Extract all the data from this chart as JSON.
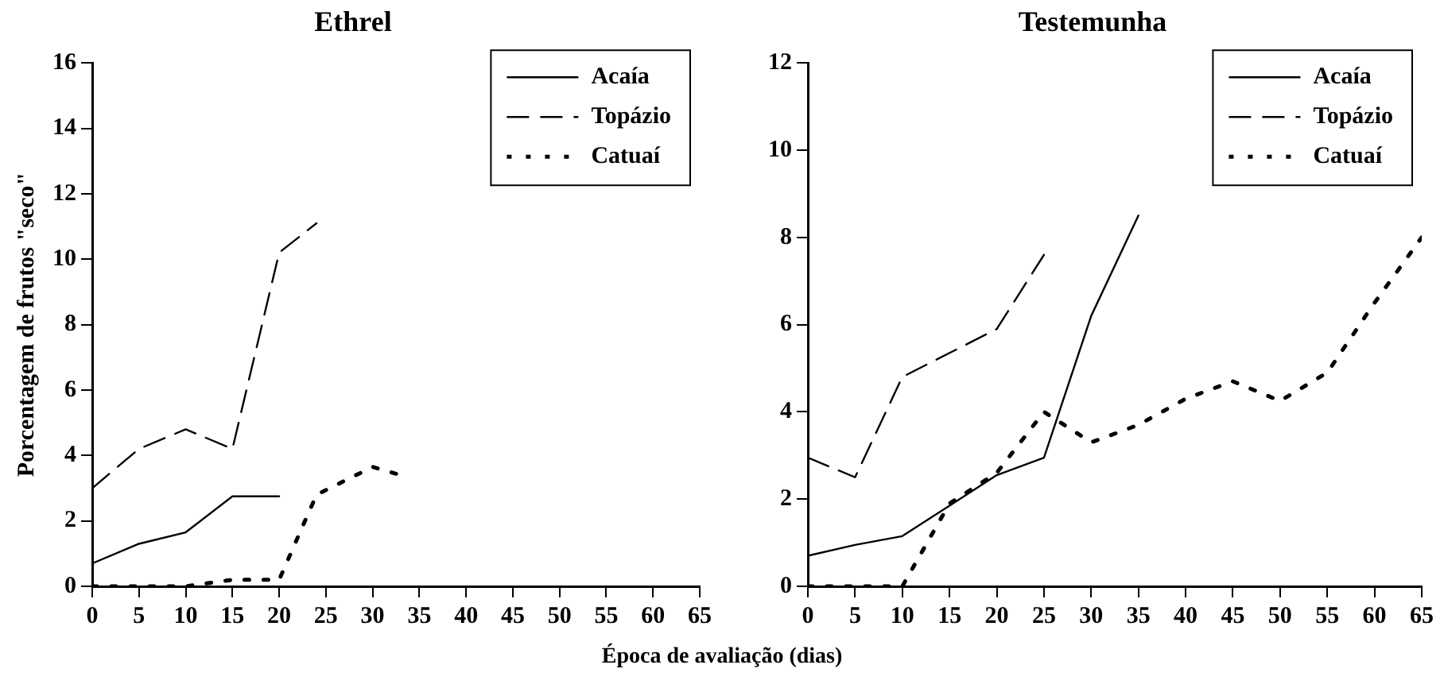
{
  "chart_data": [
    {
      "type": "line",
      "title": "Ethrel",
      "ylabel": "Porcentagem de frutos \"seco\"",
      "xlabel": "Época de avaliação (dias)",
      "xlim": [
        0,
        65
      ],
      "xticks": [
        0,
        5,
        10,
        15,
        20,
        25,
        30,
        35,
        40,
        45,
        50,
        55,
        60,
        65
      ],
      "ylim": [
        0,
        16
      ],
      "yticks": [
        0,
        2,
        4,
        6,
        8,
        10,
        12,
        14,
        16
      ],
      "grid": false,
      "legend": "top right",
      "marker": "none",
      "series": [
        {
          "name": "Acaía",
          "color": "#000000",
          "line_style": "solid",
          "x": [
            0,
            5,
            10,
            15,
            20
          ],
          "values": [
            0.7,
            1.3,
            1.65,
            2.75,
            2.75
          ]
        },
        {
          "name": "Topázio",
          "color": "#000000",
          "line_style": "dashed",
          "x": [
            0,
            5,
            10,
            15,
            20,
            24
          ],
          "values": [
            3.0,
            4.2,
            4.8,
            4.2,
            10.2,
            11.1
          ]
        },
        {
          "name": "Catuaí",
          "color": "#000000",
          "line_style": "dotted",
          "x": [
            0,
            5,
            10,
            15,
            20,
            24,
            30,
            33
          ],
          "values": [
            0,
            0,
            0,
            0.2,
            0.2,
            2.8,
            3.65,
            3.4
          ]
        }
      ]
    },
    {
      "type": "line",
      "title": "Testemunha",
      "xlim": [
        0,
        65
      ],
      "xticks": [
        0,
        5,
        10,
        15,
        20,
        25,
        30,
        35,
        40,
        45,
        50,
        55,
        60,
        65
      ],
      "ylim": [
        0,
        12
      ],
      "yticks": [
        0,
        2,
        4,
        6,
        8,
        10,
        12
      ],
      "grid": false,
      "legend": "top right",
      "marker": "none",
      "series": [
        {
          "name": "Acaía",
          "color": "#000000",
          "line_style": "solid",
          "x": [
            0,
            5,
            10,
            15,
            20,
            25,
            30,
            35
          ],
          "values": [
            0.7,
            0.95,
            1.15,
            1.85,
            2.55,
            2.95,
            6.2,
            8.5
          ]
        },
        {
          "name": "Topázio",
          "color": "#000000",
          "line_style": "dashed",
          "x": [
            0,
            5,
            10,
            15,
            20,
            25
          ],
          "values": [
            2.95,
            2.5,
            4.8,
            5.35,
            5.9,
            7.6
          ]
        },
        {
          "name": "Catuaí",
          "color": "#000000",
          "line_style": "dotted",
          "x": [
            0,
            5,
            10,
            15,
            20,
            25,
            30,
            35,
            40,
            45,
            50,
            55,
            60,
            65
          ],
          "values": [
            0,
            0,
            0,
            1.9,
            2.6,
            4.0,
            3.3,
            3.7,
            4.3,
            4.7,
            4.25,
            4.9,
            6.5,
            8.0
          ]
        }
      ]
    }
  ]
}
